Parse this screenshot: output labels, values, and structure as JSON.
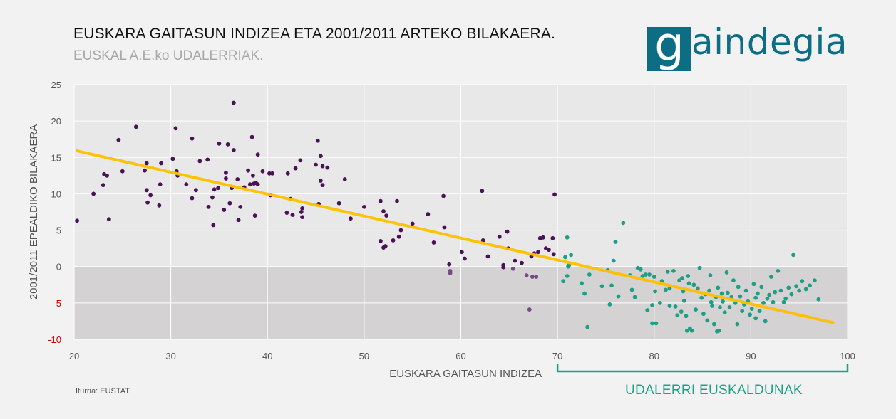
{
  "header": {
    "title": "EUSKARA GAITASUN INDIZEA ETA 2001/2011  ARTEKO BILAKAERA.",
    "subtitle": "EUSKAL A.E.ko UDALERRIAK."
  },
  "logo": {
    "text": "aindegia",
    "mark": "g"
  },
  "source": "Iturria: EUSTAT.",
  "bracket": {
    "label": "UDALERRI EUSKALDUNAK",
    "from": 70,
    "to": 100
  },
  "colors": {
    "purple": "#4a1157",
    "teal": "#1f9e86",
    "trend": "#ffc000",
    "bracket": "#1aa386",
    "negative_band": "#d4d2d3",
    "plot_bg": "#e8e8e8",
    "negative_tick": "#d00000"
  },
  "chart_data": {
    "type": "scatter",
    "xlabel": "EUSKARA GAITASUN INDIZEA",
    "ylabel": "2001/2011 EPEALDIKO BILAKAERA",
    "xlim": [
      20,
      100
    ],
    "ylim": [
      -10,
      25
    ],
    "xticks": [
      20,
      30,
      40,
      50,
      60,
      70,
      80,
      90,
      100
    ],
    "yticks": [
      25,
      20,
      15,
      10,
      5,
      0,
      -5,
      -10
    ],
    "grid": true,
    "trendline": {
      "x": [
        20.3,
        98.5
      ],
      "y": [
        15.9,
        -7.7
      ]
    },
    "series": [
      {
        "color": "#4a1157",
        "points": [
          [
            20.3,
            6.3
          ],
          [
            22,
            10
          ],
          [
            23,
            11.2
          ],
          [
            23.1,
            12.7
          ],
          [
            23.4,
            12.5
          ],
          [
            23.6,
            6.5
          ],
          [
            24.6,
            17.4
          ],
          [
            25,
            13.1
          ],
          [
            26.4,
            19.2
          ],
          [
            27.3,
            13.2
          ],
          [
            27.5,
            14.2
          ],
          [
            27.5,
            10.5
          ],
          [
            27.6,
            8.8
          ],
          [
            27.9,
            9.8
          ],
          [
            28.8,
            8.4
          ],
          [
            28.9,
            11.3
          ],
          [
            29,
            14.2
          ],
          [
            30.2,
            14.8
          ],
          [
            30.5,
            19
          ],
          [
            30.6,
            13.1
          ],
          [
            30.7,
            12.5
          ],
          [
            31.6,
            11.3
          ],
          [
            32.2,
            17.6
          ],
          [
            32.2,
            9.4
          ],
          [
            32.6,
            10.5
          ],
          [
            33,
            14.5
          ],
          [
            33.8,
            14.7
          ],
          [
            33.9,
            8.2
          ],
          [
            34.3,
            9.5
          ],
          [
            34.4,
            5.7
          ],
          [
            34.5,
            10.6
          ],
          [
            34.9,
            10.8
          ],
          [
            35,
            16.9
          ],
          [
            35.5,
            7.8
          ],
          [
            35.7,
            12.9
          ],
          [
            35.7,
            12.1
          ],
          [
            35.9,
            16.8
          ],
          [
            36.1,
            8.7
          ],
          [
            36.3,
            10.8
          ],
          [
            36.5,
            22.5
          ],
          [
            36.5,
            16
          ],
          [
            36.9,
            12
          ],
          [
            37,
            6.4
          ],
          [
            37.2,
            8.2
          ],
          [
            37.6,
            10.9
          ],
          [
            38,
            13.2
          ],
          [
            38.2,
            11.3
          ],
          [
            38.4,
            17.8
          ],
          [
            38.5,
            12.5
          ],
          [
            38.6,
            11.4
          ],
          [
            38.7,
            7
          ],
          [
            38.8,
            11.5
          ],
          [
            39,
            11.3
          ],
          [
            39,
            15.4
          ],
          [
            39.5,
            13.1
          ],
          [
            40.2,
            12.8
          ],
          [
            40.5,
            12.8
          ],
          [
            40.3,
            9.8
          ],
          [
            42,
            7.4
          ],
          [
            42.1,
            12.8
          ],
          [
            42.4,
            9.3
          ],
          [
            42.6,
            7.1
          ],
          [
            42.9,
            13.5
          ],
          [
            43.4,
            14.6
          ],
          [
            43.5,
            7.5
          ],
          [
            43.6,
            8
          ],
          [
            43.6,
            6.8
          ],
          [
            45,
            14
          ],
          [
            45.2,
            17.3
          ],
          [
            45.3,
            8.6
          ],
          [
            45.5,
            15.2
          ],
          [
            45.5,
            11.8
          ],
          [
            45.7,
            13.8
          ],
          [
            45.7,
            11.2
          ],
          [
            46.2,
            13.6
          ],
          [
            47.4,
            8.7
          ],
          [
            48,
            12
          ],
          [
            48.6,
            6.6
          ],
          [
            50,
            8.2
          ],
          [
            51.7,
            9
          ],
          [
            51.7,
            3.5
          ],
          [
            52,
            7.6
          ],
          [
            52,
            2.6
          ],
          [
            52.2,
            2.8
          ],
          [
            52.3,
            7
          ],
          [
            53,
            3.6
          ],
          [
            53.4,
            9
          ],
          [
            53.6,
            4.1
          ],
          [
            53.8,
            5
          ],
          [
            55,
            5.9
          ],
          [
            56.6,
            7.2
          ],
          [
            57.2,
            3.3
          ],
          [
            58.2,
            9.7
          ],
          [
            58.3,
            5.4
          ],
          [
            58.8,
            0.3
          ],
          [
            60.1,
            2
          ],
          [
            60.4,
            1.1
          ],
          [
            62.2,
            10.4
          ],
          [
            62.3,
            3.6
          ],
          [
            62.8,
            1.4
          ],
          [
            64,
            4.1
          ],
          [
            64.4,
            0.2
          ],
          [
            64.4,
            -0.1
          ],
          [
            64.8,
            4.8
          ],
          [
            64.9,
            2.5
          ],
          [
            65.6,
            0.8
          ],
          [
            66.3,
            0.5
          ],
          [
            67.3,
            1.4
          ],
          [
            67.6,
            1.8
          ],
          [
            68,
            2
          ],
          [
            68.2,
            3.9
          ],
          [
            68.5,
            4
          ],
          [
            68.8,
            2.5
          ],
          [
            69.1,
            2.3
          ],
          [
            69.5,
            3.9
          ],
          [
            69.6,
            1.7
          ],
          [
            69.7,
            9.9
          ]
        ]
      },
      {
        "color": "#7a4a86",
        "points": [
          [
            58.9,
            -0.6
          ],
          [
            58.9,
            -0.9
          ],
          [
            65.4,
            -0.3
          ],
          [
            66.8,
            -1.2
          ],
          [
            67.1,
            -5.9
          ],
          [
            67.4,
            -1.4
          ],
          [
            67.8,
            -1.4
          ]
        ]
      },
      {
        "color": "#1f9e86",
        "points": [
          [
            70.6,
            -2
          ],
          [
            70.8,
            1.3
          ],
          [
            71,
            4
          ],
          [
            71,
            -1.3
          ],
          [
            71.1,
            0
          ],
          [
            71.2,
            0.2
          ],
          [
            71.4,
            1.6
          ],
          [
            72.5,
            -2.3
          ],
          [
            72.8,
            -3.7
          ],
          [
            73.1,
            -8.3
          ],
          [
            73.3,
            -1.1
          ],
          [
            74.6,
            -2.7
          ],
          [
            75.2,
            -0.5
          ],
          [
            75.4,
            -5.2
          ],
          [
            75.6,
            -2.6
          ],
          [
            75.8,
            0.8
          ],
          [
            76,
            3.4
          ],
          [
            76.3,
            -4.1
          ],
          [
            76.8,
            6
          ],
          [
            77.5,
            -1.2
          ],
          [
            77.7,
            -3.2
          ],
          [
            78,
            -4.2
          ],
          [
            78.3,
            -0.2
          ],
          [
            78.6,
            -0.4
          ],
          [
            78.8,
            -1.3
          ],
          [
            79.1,
            -1.1
          ],
          [
            79.3,
            -6
          ],
          [
            79.5,
            -1.1
          ],
          [
            79.8,
            -7.8
          ],
          [
            79.8,
            -5.3
          ],
          [
            80,
            -1.4
          ],
          [
            80.1,
            -3.4
          ],
          [
            80.2,
            -7.8
          ],
          [
            80.6,
            -5
          ],
          [
            80.8,
            -2
          ],
          [
            81.2,
            -3.2
          ],
          [
            81.4,
            -0.7
          ],
          [
            81.6,
            -3
          ],
          [
            81.6,
            -5.4
          ],
          [
            82,
            -0.6
          ],
          [
            82.2,
            -5.5
          ],
          [
            82.4,
            -6.7
          ],
          [
            82.6,
            -1.9
          ],
          [
            82.8,
            -6.2
          ],
          [
            82.9,
            -1.6
          ],
          [
            83,
            -3.4
          ],
          [
            83.1,
            -4.7
          ],
          [
            83.3,
            -6.8
          ],
          [
            83.4,
            -8.8
          ],
          [
            83.5,
            -1.3
          ],
          [
            83.6,
            -2.3
          ],
          [
            83.7,
            -8.5
          ],
          [
            83.9,
            -8.8
          ],
          [
            84.1,
            -2.5
          ],
          [
            84.3,
            -5.9
          ],
          [
            84.5,
            -3
          ],
          [
            84.7,
            -0.2
          ],
          [
            84.9,
            -4.3
          ],
          [
            85.1,
            -6.5
          ],
          [
            85.3,
            -3.8
          ],
          [
            85.5,
            -7.4
          ],
          [
            85.7,
            -3.3
          ],
          [
            85.8,
            -1.2
          ],
          [
            85.9,
            -4.9
          ],
          [
            86,
            -5.4
          ],
          [
            86.2,
            -7.9
          ],
          [
            86.4,
            -4.2
          ],
          [
            86.5,
            -8.9
          ],
          [
            86.6,
            -2.9
          ],
          [
            86.7,
            -8.8
          ],
          [
            86.8,
            -5.6
          ],
          [
            87,
            -3.7
          ],
          [
            87.1,
            -4.8
          ],
          [
            87.3,
            -6.3
          ],
          [
            87.5,
            -0.8
          ],
          [
            87.6,
            -3.6
          ],
          [
            87.8,
            -5.6
          ],
          [
            88,
            -4.2
          ],
          [
            88.2,
            -1.9
          ],
          [
            88.4,
            -5
          ],
          [
            88.6,
            -7.9
          ],
          [
            88.7,
            -2.8
          ],
          [
            88.9,
            -4.1
          ],
          [
            89.1,
            -6.1
          ],
          [
            89.3,
            -5.2
          ],
          [
            89.5,
            -3.3
          ],
          [
            89.7,
            -4.8
          ],
          [
            89.9,
            -6.6
          ],
          [
            90.1,
            -5.8
          ],
          [
            90.3,
            -2.4
          ],
          [
            90.5,
            -7.1
          ],
          [
            90.5,
            -4.3
          ],
          [
            90.7,
            -3.7
          ],
          [
            90.9,
            -6.1
          ],
          [
            91.1,
            -2.8
          ],
          [
            91.3,
            -5
          ],
          [
            91.5,
            -7.5
          ],
          [
            91.7,
            -4.4
          ],
          [
            91.9,
            -3.9
          ],
          [
            92.1,
            -1.4
          ],
          [
            92.3,
            -4.9
          ],
          [
            92.5,
            -3.5
          ],
          [
            92.8,
            -0.6
          ],
          [
            93.1,
            -3.3
          ],
          [
            93.4,
            -4.9
          ],
          [
            93.6,
            -4.4
          ],
          [
            93.9,
            -2.9
          ],
          [
            94.2,
            -3.8
          ],
          [
            94.4,
            1.6
          ],
          [
            94.7,
            -2.7
          ],
          [
            95,
            -3.3
          ],
          [
            95.3,
            -2
          ],
          [
            95.7,
            -3.1
          ],
          [
            96.1,
            -2.6
          ],
          [
            96.6,
            -1.9
          ],
          [
            97,
            -4.5
          ]
        ]
      }
    ]
  }
}
